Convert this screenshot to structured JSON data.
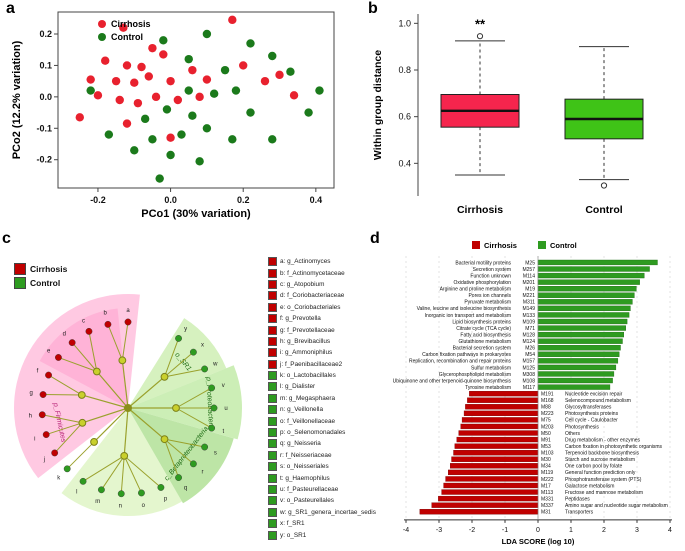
{
  "panels": {
    "a": "a",
    "b": "b",
    "c": "c",
    "d": "d"
  },
  "colors": {
    "cirrhosis_point": "#e8212e",
    "control_point": "#1b7a1b",
    "cirrhosis_box": "#f5254d",
    "control_box": "#3fc317",
    "cirrhosis_bar": "#c00000",
    "control_bar": "#2e9b20"
  },
  "chart_data": [
    {
      "panel": "a",
      "type": "scatter",
      "xlabel": "PCo1 (30% variation)",
      "ylabel": "PCo2 (12.2% variation)",
      "xlim": [
        -0.31,
        0.45
      ],
      "ylim": [
        -0.29,
        0.27
      ],
      "xticks": [
        -0.2,
        0.0,
        0.2,
        0.4
      ],
      "yticks": [
        -0.2,
        -0.1,
        0.0,
        0.1,
        0.2
      ],
      "legend": [
        {
          "label": "Cirrhosis",
          "color": "#e8212e"
        },
        {
          "label": "Control",
          "color": "#1b7a1b"
        }
      ],
      "series": [
        {
          "name": "Cirrhosis",
          "color": "#e8212e",
          "points": [
            [
              -0.13,
              0.22
            ],
            [
              0.17,
              0.245
            ],
            [
              -0.05,
              0.155
            ],
            [
              -0.02,
              0.135
            ],
            [
              -0.18,
              0.115
            ],
            [
              -0.12,
              0.1
            ],
            [
              -0.08,
              0.095
            ],
            [
              -0.22,
              0.055
            ],
            [
              -0.15,
              0.05
            ],
            [
              -0.1,
              0.045
            ],
            [
              -0.06,
              0.065
            ],
            [
              0.0,
              0.05
            ],
            [
              0.06,
              0.085
            ],
            [
              0.1,
              0.055
            ],
            [
              -0.2,
              0.005
            ],
            [
              -0.14,
              -0.01
            ],
            [
              -0.09,
              -0.02
            ],
            [
              -0.04,
              0.0
            ],
            [
              0.02,
              -0.01
            ],
            [
              0.08,
              0.0
            ],
            [
              0.3,
              0.07
            ],
            [
              0.26,
              0.05
            ],
            [
              0.34,
              0.005
            ],
            [
              -0.25,
              -0.065
            ],
            [
              -0.12,
              -0.085
            ],
            [
              0.0,
              -0.13
            ],
            [
              0.2,
              0.1
            ]
          ]
        },
        {
          "name": "Control",
          "color": "#1b7a1b",
          "points": [
            [
              0.1,
              0.2
            ],
            [
              0.22,
              0.17
            ],
            [
              0.28,
              0.13
            ],
            [
              -0.02,
              0.18
            ],
            [
              0.05,
              0.12
            ],
            [
              0.15,
              0.085
            ],
            [
              0.33,
              0.08
            ],
            [
              0.41,
              0.02
            ],
            [
              0.38,
              -0.05
            ],
            [
              0.05,
              0.02
            ],
            [
              0.12,
              0.01
            ],
            [
              0.18,
              0.02
            ],
            [
              -0.01,
              -0.04
            ],
            [
              0.06,
              -0.06
            ],
            [
              -0.07,
              -0.07
            ],
            [
              -0.17,
              -0.12
            ],
            [
              -0.05,
              -0.135
            ],
            [
              0.03,
              -0.12
            ],
            [
              0.1,
              -0.1
            ],
            [
              0.17,
              -0.135
            ],
            [
              0.28,
              -0.135
            ],
            [
              -0.1,
              -0.17
            ],
            [
              0.0,
              -0.185
            ],
            [
              0.08,
              -0.205
            ],
            [
              -0.03,
              -0.26
            ],
            [
              0.22,
              -0.05
            ],
            [
              -0.22,
              0.02
            ]
          ]
        }
      ]
    },
    {
      "panel": "b",
      "type": "box",
      "ylabel": "Within group distance",
      "ylim": [
        0.26,
        1.04
      ],
      "yticks": [
        0.4,
        0.6,
        0.8,
        1.0
      ],
      "annotation": "**",
      "annotation_y": 0.99,
      "boxes": [
        {
          "label": "Cirrhosis",
          "color": "#f5254d",
          "q1": 0.555,
          "median": 0.625,
          "q3": 0.695,
          "whisker_low": 0.35,
          "whisker_high": 0.925,
          "outliers": [
            0.945
          ]
        },
        {
          "label": "Control",
          "color": "#3fc317",
          "q1": 0.505,
          "median": 0.59,
          "q3": 0.675,
          "whisker_low": 0.33,
          "whisker_high": 0.9,
          "outliers": [
            0.305
          ]
        }
      ]
    },
    {
      "panel": "c",
      "type": "cladogram",
      "legend": [
        {
          "label": "Cirrhosis",
          "color": "#c00000"
        },
        {
          "label": "Control",
          "color": "#2e9b20"
        }
      ],
      "sectors": [
        {
          "label": "p_Firmicutes",
          "color": "#ff71b3",
          "opacity": 0.38,
          "start": -84,
          "end": -218,
          "r": 114,
          "label_angle": -192,
          "label_r": 72,
          "label_color": "#b82377"
        },
        {
          "label": "",
          "color": "#ff9dcb",
          "opacity": 0.5,
          "start": -96,
          "end": -152,
          "r": 100
        },
        {
          "label": "",
          "color": "#b8e87e",
          "opacity": 0.38,
          "start": -232,
          "end": -300,
          "r": 108
        },
        {
          "label": "c_Betaproteobacteria",
          "color": "#7ccb4e",
          "opacity": 0.5,
          "start": -300,
          "end": -344,
          "r": 110,
          "label_angle": -322,
          "label_r": 76,
          "label_color": "#1d6b13"
        },
        {
          "label": "p_Proteobacteria",
          "color": "#8fd95e",
          "opacity": 0.45,
          "start": -344,
          "end": -382,
          "r": 114,
          "label_angle": -363,
          "label_r": 80,
          "label_color": "#1d6b13"
        },
        {
          "label": "o_SR1",
          "color": "#a5e070",
          "opacity": 0.45,
          "start": -382,
          "end": -418,
          "r": 106,
          "label_angle": -400,
          "label_r": 70,
          "label_color": "#1d6b13"
        }
      ],
      "tree_groups": [
        [
          0,
          1
        ],
        [
          2,
          3,
          4
        ],
        [
          5,
          6
        ],
        [
          7,
          8,
          9
        ],
        [
          10
        ],
        [
          11,
          12,
          13,
          14,
          15
        ],
        [
          16,
          17,
          18
        ],
        [
          19,
          20,
          21
        ],
        [
          22,
          23,
          24
        ]
      ],
      "taxa": [
        {
          "key": "a",
          "name": "g_Actinomyces",
          "group": "Cirrhosis"
        },
        {
          "key": "b",
          "name": "f_Actinomycetaceae",
          "group": "Cirrhosis"
        },
        {
          "key": "c",
          "name": "g_Atopobium",
          "group": "Cirrhosis"
        },
        {
          "key": "d",
          "name": "f_Coriobacteriaceae",
          "group": "Cirrhosis"
        },
        {
          "key": "e",
          "name": "o_Coriobacteriales",
          "group": "Cirrhosis"
        },
        {
          "key": "f",
          "name": "g_Prevotella",
          "group": "Cirrhosis"
        },
        {
          "key": "g",
          "name": "f_Prevotellaceae",
          "group": "Cirrhosis"
        },
        {
          "key": "h",
          "name": "g_Brevibacillus",
          "group": "Cirrhosis"
        },
        {
          "key": "i",
          "name": "g_Ammoniphilus",
          "group": "Cirrhosis"
        },
        {
          "key": "j",
          "name": "f_Paenibacillaceae2",
          "group": "Cirrhosis"
        },
        {
          "key": "k",
          "name": "o_Lactobacillales",
          "group": "Control"
        },
        {
          "key": "l",
          "name": "g_Dialister",
          "group": "Control"
        },
        {
          "key": "m",
          "name": "g_Megasphaera",
          "group": "Control"
        },
        {
          "key": "n",
          "name": "g_Veillonella",
          "group": "Control"
        },
        {
          "key": "o",
          "name": "f_Veillonellaceae",
          "group": "Control"
        },
        {
          "key": "p",
          "name": "o_Selenomonadales",
          "group": "Control"
        },
        {
          "key": "q",
          "name": "g_Neisseria",
          "group": "Control"
        },
        {
          "key": "r",
          "name": "f_Neisseriaceae",
          "group": "Control"
        },
        {
          "key": "s",
          "name": "o_Neisseriales",
          "group": "Control"
        },
        {
          "key": "t",
          "name": "g_Haemophilus",
          "group": "Control"
        },
        {
          "key": "u",
          "name": "f_Pasteurellaceae",
          "group": "Control"
        },
        {
          "key": "v",
          "name": "o_Pasteurellales",
          "group": "Control"
        },
        {
          "key": "w",
          "name": "g_SR1_genera_incertae_sedis",
          "group": "Control"
        },
        {
          "key": "x",
          "name": "f_SR1",
          "group": "Control"
        },
        {
          "key": "y",
          "name": "o_SR1",
          "group": "Control"
        }
      ]
    },
    {
      "panel": "d",
      "type": "bar",
      "xlabel": "LDA SCORE (log 10)",
      "xlim": [
        -4,
        4
      ],
      "xticks": [
        -4,
        -3,
        -2,
        -1,
        0,
        1,
        2,
        3,
        4
      ],
      "legend": [
        {
          "label": "Cirrhosis",
          "color": "#c00000"
        },
        {
          "label": "Control",
          "color": "#2e9b20"
        }
      ],
      "bars": [
        {
          "label": "Bacterial motility proteins",
          "code": "M25",
          "value": 3.62,
          "group": "Control"
        },
        {
          "label": "Secretion system",
          "code": "M257",
          "value": 3.38,
          "group": "Control"
        },
        {
          "label": "Function unknown",
          "code": "M114",
          "value": 3.22,
          "group": "Control"
        },
        {
          "label": "Oxidative phosphorylation",
          "code": "M201",
          "value": 3.08,
          "group": "Control"
        },
        {
          "label": "Arginine and proline metabolism",
          "code": "M19",
          "value": 2.98,
          "group": "Control"
        },
        {
          "label": "Pores ion channels",
          "code": "M221",
          "value": 2.92,
          "group": "Control"
        },
        {
          "label": "Pyruvate metabolism",
          "code": "M311",
          "value": 2.86,
          "group": "Control"
        },
        {
          "label": "Valine, leucine and isoleucine biosynthesis",
          "code": "M149",
          "value": 2.8,
          "group": "Control"
        },
        {
          "label": "Inorganic ion transport and metabolism",
          "code": "M133",
          "value": 2.76,
          "group": "Control"
        },
        {
          "label": "Lipid biosynthesis proteins",
          "code": "M109",
          "value": 2.7,
          "group": "Control"
        },
        {
          "label": "Citrate cycle (TCA cycle)",
          "code": "M71",
          "value": 2.66,
          "group": "Control"
        },
        {
          "label": "Fatty acid biosynthesis",
          "code": "M128",
          "value": 2.6,
          "group": "Control"
        },
        {
          "label": "Glutathione metabolism",
          "code": "M124",
          "value": 2.56,
          "group": "Control"
        },
        {
          "label": "Bacterial secretion system",
          "code": "M26",
          "value": 2.5,
          "group": "Control"
        },
        {
          "label": "Carbon fixation pathways in prokaryotes",
          "code": "M54",
          "value": 2.46,
          "group": "Control"
        },
        {
          "label": "Replication, recombination and repair proteins",
          "code": "M157",
          "value": 2.42,
          "group": "Control"
        },
        {
          "label": "Sulfur metabolism",
          "code": "M125",
          "value": 2.36,
          "group": "Control"
        },
        {
          "label": "Glycerophospholipid metabolism",
          "code": "M308",
          "value": 2.3,
          "group": "Control"
        },
        {
          "label": "Ubiquinone and other terpenoid-quinone biosynthesis",
          "code": "M108",
          "value": 2.26,
          "group": "Control"
        },
        {
          "label": "Tyrosine metabolism",
          "code": "M117",
          "value": 2.18,
          "group": "Control"
        },
        {
          "label": "Nucleotide excision repair",
          "code": "M191",
          "value": -2.08,
          "group": "Cirrhosis"
        },
        {
          "label": "Selenocompound metabolism",
          "code": "M168",
          "value": -2.14,
          "group": "Cirrhosis"
        },
        {
          "label": "Glycosyltransferases",
          "code": "M88",
          "value": -2.2,
          "group": "Cirrhosis"
        },
        {
          "label": "Photosynthesis proteins",
          "code": "M223",
          "value": -2.24,
          "group": "Cirrhosis"
        },
        {
          "label": "Cell cycle - Caulobacter",
          "code": "M75",
          "value": -2.3,
          "group": "Cirrhosis"
        },
        {
          "label": "Photosynthesis",
          "code": "M203",
          "value": -2.34,
          "group": "Cirrhosis"
        },
        {
          "label": "Others",
          "code": "M50",
          "value": -2.4,
          "group": "Cirrhosis"
        },
        {
          "label": "Drug metabolism - other enzymes",
          "code": "M91",
          "value": -2.46,
          "group": "Cirrhosis"
        },
        {
          "label": "Carbon fixation in photosynthetic organisms",
          "code": "M53",
          "value": -2.52,
          "group": "Cirrhosis"
        },
        {
          "label": "Terpenoid backbone biosynthesis",
          "code": "M103",
          "value": -2.56,
          "group": "Cirrhosis"
        },
        {
          "label": "Starch and sucrose metabolism",
          "code": "M30",
          "value": -2.62,
          "group": "Cirrhosis"
        },
        {
          "label": "One carbon pool by folate",
          "code": "M34",
          "value": -2.66,
          "group": "Cirrhosis"
        },
        {
          "label": "General function prediction only",
          "code": "M119",
          "value": -2.72,
          "group": "Cirrhosis"
        },
        {
          "label": "Phosphotransferase system (PTS)",
          "code": "M222",
          "value": -2.8,
          "group": "Cirrhosis"
        },
        {
          "label": "Galactose metabolism",
          "code": "M17",
          "value": -2.86,
          "group": "Cirrhosis"
        },
        {
          "label": "Fructose and mannose metabolism",
          "code": "M113",
          "value": -2.92,
          "group": "Cirrhosis"
        },
        {
          "label": "Peptidases",
          "code": "M331",
          "value": -3.02,
          "group": "Cirrhosis"
        },
        {
          "label": "Amino sugar and nucleotide sugar metabolism",
          "code": "M337",
          "value": -3.22,
          "group": "Cirrhosis"
        },
        {
          "label": "Transporters",
          "code": "M31",
          "value": -3.58,
          "group": "Cirrhosis"
        }
      ]
    }
  ]
}
